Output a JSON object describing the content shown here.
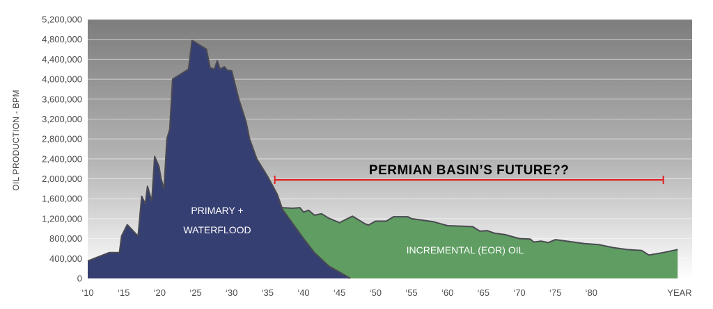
{
  "chart_data": {
    "type": "area",
    "title": "",
    "xlabel": "",
    "ylabel": "OIL PRODUCTION - BPM",
    "ylim": [
      0,
      5200000
    ],
    "xlim": [
      1910,
      1994
    ],
    "y_ticks": [
      {
        "value": 0,
        "label": "0"
      },
      {
        "value": 400000,
        "label": "400,000"
      },
      {
        "value": 800000,
        "label": "800,000"
      },
      {
        "value": 1200000,
        "label": "1,200,000"
      },
      {
        "value": 1600000,
        "label": "1,600,000"
      },
      {
        "value": 2000000,
        "label": "2,000,000"
      },
      {
        "value": 2400000,
        "label": "2,400,000"
      },
      {
        "value": 2800000,
        "label": "2,800,000"
      },
      {
        "value": 3200000,
        "label": "3,200,000"
      },
      {
        "value": 3600000,
        "label": "3,600,000"
      },
      {
        "value": 4000000,
        "label": "4,000,000"
      },
      {
        "value": 4400000,
        "label": "4,400,000"
      },
      {
        "value": 4800000,
        "label": "4,800,000"
      },
      {
        "value": 5200000,
        "label": "5,200,000"
      }
    ],
    "x_ticks": [
      {
        "value": 1910,
        "label": "‘10"
      },
      {
        "value": 1915,
        "label": "‘15"
      },
      {
        "value": 1920,
        "label": "‘20"
      },
      {
        "value": 1925,
        "label": "‘25"
      },
      {
        "value": 1930,
        "label": "‘30"
      },
      {
        "value": 1935,
        "label": "‘35"
      },
      {
        "value": 1940,
        "label": "‘40"
      },
      {
        "value": 1945,
        "label": "‘45"
      },
      {
        "value": 1950,
        "label": "‘50"
      },
      {
        "value": 1955,
        "label": "‘55"
      },
      {
        "value": 1960,
        "label": "‘60"
      },
      {
        "value": 1965,
        "label": "‘65"
      },
      {
        "value": 1970,
        "label": "‘70"
      },
      {
        "value": 1975,
        "label": "‘75"
      },
      {
        "value": 1980,
        "label": "‘80"
      },
      {
        "value": 1990,
        "label": "YEAR"
      }
    ],
    "series": [
      {
        "label_lines": [
          "PRIMARY +",
          "WATERFLOOD"
        ],
        "color": "#363f72",
        "points": [
          [
            1910,
            350000
          ],
          [
            1913,
            520000
          ],
          [
            1914.4,
            520000
          ],
          [
            1914.7,
            850000
          ],
          [
            1915.5,
            1080000
          ],
          [
            1917,
            850000
          ],
          [
            1917.5,
            1650000
          ],
          [
            1918,
            1500000
          ],
          [
            1918.3,
            1850000
          ],
          [
            1918.9,
            1550000
          ],
          [
            1919.3,
            2450000
          ],
          [
            1919.9,
            2250000
          ],
          [
            1920.2,
            2000000
          ],
          [
            1920.6,
            1800000
          ],
          [
            1921,
            2800000
          ],
          [
            1921.4,
            3000000
          ],
          [
            1921.8,
            4000000
          ],
          [
            1924,
            4200000
          ],
          [
            1924.5,
            4780000
          ],
          [
            1926.5,
            4600000
          ],
          [
            1927,
            4230000
          ],
          [
            1927.6,
            4200000
          ],
          [
            1928,
            4370000
          ],
          [
            1928.4,
            4200000
          ],
          [
            1929,
            4250000
          ],
          [
            1929.4,
            4180000
          ],
          [
            1930,
            4170000
          ],
          [
            1931,
            3600000
          ],
          [
            1932,
            3150000
          ],
          [
            1932.5,
            2800000
          ],
          [
            1933.5,
            2400000
          ],
          [
            1935,
            2050000
          ],
          [
            1936.3,
            1700000
          ],
          [
            1937,
            1400000
          ],
          [
            1940,
            800000
          ],
          [
            1941.5,
            520000
          ],
          [
            1943.5,
            250000
          ],
          [
            1946.5,
            0
          ]
        ]
      },
      {
        "label": "INCREMENTAL (EOR) OIL",
        "color": "#5f9d62",
        "points": [
          [
            1936.3,
            1700000
          ],
          [
            1937,
            1420000
          ],
          [
            1938.5,
            1410000
          ],
          [
            1939.5,
            1420000
          ],
          [
            1940,
            1330000
          ],
          [
            1940.7,
            1370000
          ],
          [
            1941.5,
            1270000
          ],
          [
            1942.5,
            1300000
          ],
          [
            1943.5,
            1210000
          ],
          [
            1944.5,
            1150000
          ],
          [
            1945,
            1120000
          ],
          [
            1945.8,
            1180000
          ],
          [
            1946.8,
            1250000
          ],
          [
            1948.5,
            1100000
          ],
          [
            1949,
            1070000
          ],
          [
            1950,
            1150000
          ],
          [
            1951.5,
            1150000
          ],
          [
            1952.5,
            1240000
          ],
          [
            1954.5,
            1240000
          ],
          [
            1955,
            1200000
          ],
          [
            1958,
            1140000
          ],
          [
            1960,
            1060000
          ],
          [
            1962,
            1050000
          ],
          [
            1963.5,
            1040000
          ],
          [
            1964.5,
            950000
          ],
          [
            1965.5,
            960000
          ],
          [
            1966.5,
            910000
          ],
          [
            1968,
            880000
          ],
          [
            1970,
            800000
          ],
          [
            1971.5,
            790000
          ],
          [
            1972,
            730000
          ],
          [
            1973,
            750000
          ],
          [
            1974,
            720000
          ],
          [
            1975,
            780000
          ],
          [
            1977,
            740000
          ],
          [
            1979,
            700000
          ],
          [
            1981,
            680000
          ],
          [
            1983,
            620000
          ],
          [
            1985,
            580000
          ],
          [
            1987,
            560000
          ],
          [
            1988,
            470000
          ],
          [
            1990,
            520000
          ],
          [
            1992,
            580000
          ]
        ]
      }
    ],
    "annotation": {
      "text": "PERMIAN BASIN’S FUTURE??",
      "x_start": 1936,
      "x_end": 1990,
      "y": 1980000,
      "color": "#e02020"
    },
    "background": {
      "top_color": "#7d7d7d",
      "bottom_color": "#ffffff"
    }
  }
}
